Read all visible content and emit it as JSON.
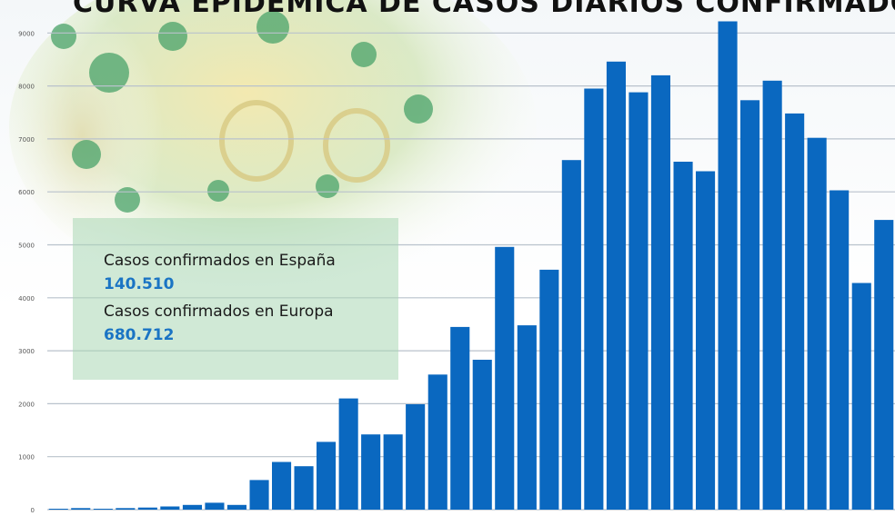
{
  "chart_data": {
    "type": "bar",
    "title": "CURVA EPIDÉMICA DE CASOS DIARIOS CONFIRMADOS",
    "xlabel": "",
    "ylabel": "",
    "ylim": [
      0,
      9500
    ],
    "y_ticks": [
      "0",
      "1000",
      "2000",
      "3000",
      "4000",
      "5000",
      "6000",
      "7000",
      "8000",
      "9000"
    ],
    "grid": true,
    "colors": {
      "bar": "#0a68c0",
      "grid": "#b9c2cc"
    },
    "values": [
      10,
      30,
      15,
      30,
      40,
      60,
      90,
      130,
      90,
      560,
      900,
      820,
      1280,
      2100,
      1420,
      1420,
      1990,
      2550,
      3450,
      2830,
      4960,
      3480,
      4530,
      6600,
      7950,
      8460,
      7880,
      8200,
      6570,
      6390,
      9220,
      7730,
      8100,
      7480,
      7020,
      6030,
      4280,
      5470
    ]
  },
  "info_box": {
    "spain_label": "Casos confirmados en España",
    "spain_value": "140.510",
    "europe_label": "Casos confirmados en Europa",
    "europe_value": "680.712"
  }
}
